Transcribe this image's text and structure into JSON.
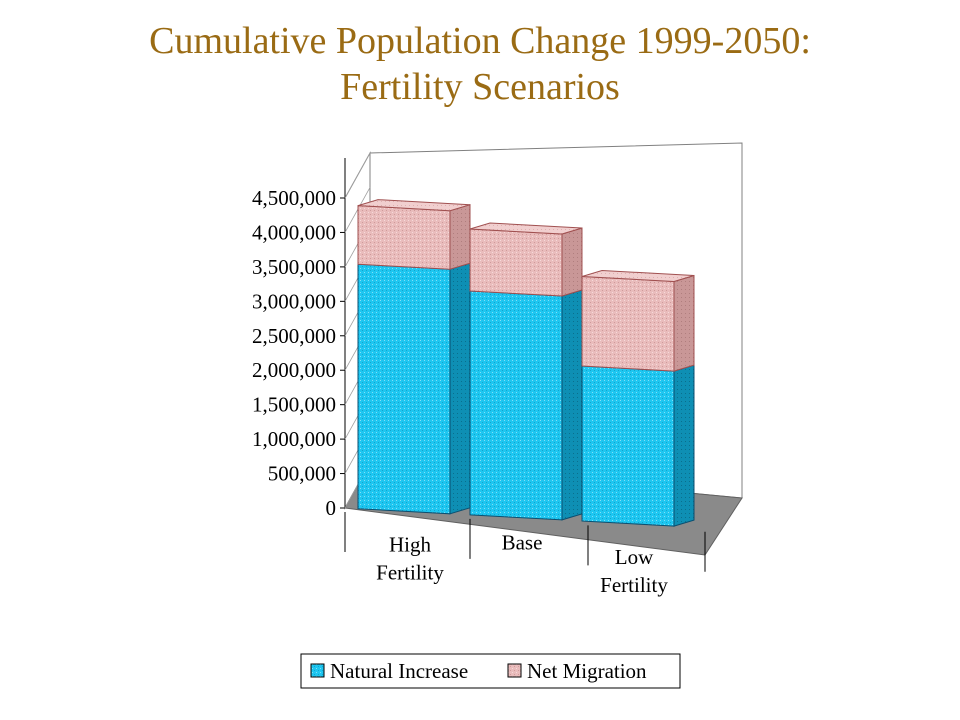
{
  "chart_data": {
    "type": "bar",
    "stacked": true,
    "three_d": true,
    "title_line1": "Cumulative Population Change 1999-2050:",
    "title_line2": "Fertility Scenarios",
    "categories": [
      [
        "High",
        "Fertility"
      ],
      [
        "Base"
      ],
      [
        "Low",
        "Fertility"
      ]
    ],
    "series": [
      {
        "name": "Natural Increase",
        "color": "#1ec6f0",
        "values": [
          3550000,
          3250000,
          2250000
        ]
      },
      {
        "name": "Net Migration",
        "color": "#e9bcbc",
        "values": [
          850000,
          900000,
          1300000
        ]
      }
    ],
    "ylim": [
      0,
      4500000
    ],
    "y_ticks": [
      "0",
      "500,000",
      "1,000,000",
      "1,500,000",
      "2,000,000",
      "2,500,000",
      "3,000,000",
      "3,500,000",
      "4,000,000",
      "4,500,000"
    ],
    "grid": false,
    "legend_position": "bottom"
  }
}
